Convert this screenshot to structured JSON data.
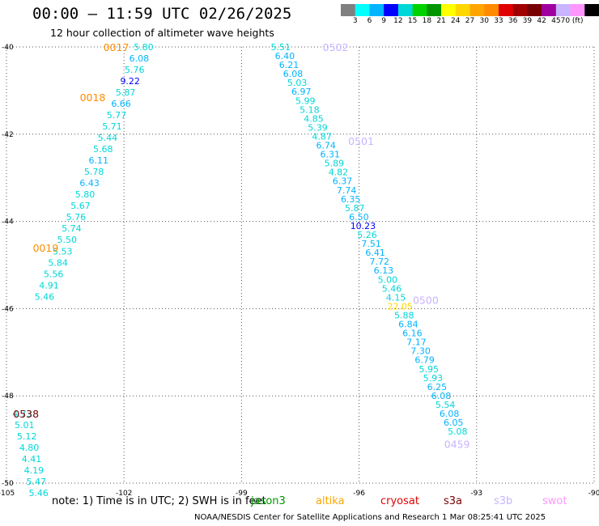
{
  "title": "00:00 – 11:59 UTC 02/26/2025",
  "subtitle": "12 hour collection of altimeter wave heights",
  "colorbar": {
    "colors": [
      "#808080",
      "#00ffff",
      "#00b4ff",
      "#0000ff",
      "#00d7d7",
      "#00d200",
      "#009600",
      "#ffff00",
      "#ffd700",
      "#ffa500",
      "#ff8c00",
      "#e10000",
      "#a00000",
      "#780000",
      "#a000a0",
      "#c8b4ff",
      "#ff96ff",
      "#000000"
    ],
    "labels": [
      "3",
      "6",
      "9",
      "12",
      "15",
      "18",
      "21",
      "24",
      "27",
      "30",
      "33",
      "36",
      "39",
      "42",
      "45",
      "70 (ft)"
    ]
  },
  "chart_data": {
    "type": "scatter",
    "xlim": [
      -105,
      -90
    ],
    "ylim": [
      -50,
      -40
    ],
    "xticks": [
      "-105",
      "-102",
      "-99",
      "-96",
      "-93",
      "-90"
    ],
    "yticks": [
      "-40",
      "-42",
      "-44",
      "-46",
      "-48",
      "-50"
    ],
    "grid": true,
    "series": [
      {
        "x0": -101.5,
        "y0": -40.0,
        "dx": -0.115,
        "dy": -0.26,
        "values": [
          "5.80",
          "6.08",
          "5.76",
          "9.22",
          "5.87",
          "6.66",
          "5.77",
          "5.71",
          "5.44",
          "5.68",
          "6.11",
          "5.78",
          "6.43",
          "5.80",
          "5.67",
          "5.76",
          "5.74",
          "5.50",
          "5.53",
          "5.84",
          "5.56",
          "4.91",
          "5.46"
        ],
        "colors": [
          "#00d7d7",
          "#00b4ff",
          "#00d7d7",
          "#0000ff",
          "#00d7d7",
          "#00b4ff",
          "#00d7d7",
          "#00d7d7",
          "#00d7d7",
          "#00d7d7",
          "#00b4ff",
          "#00d7d7",
          "#00b4ff",
          "#00d7d7",
          "#00d7d7",
          "#00d7d7",
          "#00d7d7",
          "#00d7d7",
          "#00d7d7",
          "#00d7d7",
          "#00d7d7",
          "#00d7d7",
          "#00d7d7"
        ]
      },
      {
        "x0": -98.0,
        "y0": -40.0,
        "dx": 0.105,
        "dy": -0.205,
        "values": [
          "5.51",
          "6.40",
          "6.21",
          "6.08",
          "5.03",
          "6.97",
          "5.99",
          "5.18",
          "4.85",
          "5.39",
          "4.87",
          "6.74",
          "6.31",
          "5.89",
          "4.82",
          "6.37",
          "7.74",
          "6.35",
          "5.87",
          "6.50",
          "10.23",
          "5.26",
          "7.51",
          "6.41",
          "7.72",
          "6.13",
          "5.00",
          "5.46",
          "4.15",
          "22.05",
          "5.88",
          "6.84",
          "6.16",
          "7.17",
          "7.30",
          "6.79",
          "5.95",
          "5.93",
          "6.25",
          "6.08",
          "5.54",
          "6.08",
          "6.05",
          "5.08"
        ],
        "colors": [
          "#00d7d7",
          "#00b4ff",
          "#00b4ff",
          "#00b4ff",
          "#00d7d7",
          "#00b4ff",
          "#00d7d7",
          "#00d7d7",
          "#00d7d7",
          "#00d7d7",
          "#00d7d7",
          "#00b4ff",
          "#00b4ff",
          "#00d7d7",
          "#00d7d7",
          "#00b4ff",
          "#00b4ff",
          "#00b4ff",
          "#00d7d7",
          "#00b4ff",
          "#0000ff",
          "#00d7d7",
          "#00b4ff",
          "#00b4ff",
          "#00b4ff",
          "#00b4ff",
          "#00d7d7",
          "#00d7d7",
          "#00d7d7",
          "#ffd700",
          "#00d7d7",
          "#00b4ff",
          "#00b4ff",
          "#00b4ff",
          "#00b4ff",
          "#00b4ff",
          "#00d7d7",
          "#00d7d7",
          "#00b4ff",
          "#00b4ff",
          "#00d7d7",
          "#00b4ff",
          "#00b4ff",
          "#00d7d7"
        ]
      },
      {
        "x0": -104.6,
        "y0": -48.4,
        "dx": 0.06,
        "dy": -0.26,
        "values": [
          "4.73",
          "5.01",
          "5.12",
          "4.80",
          "4.41",
          "4.19",
          "5.47",
          "5.46"
        ],
        "colors": [
          "#00d7d7",
          "#00d7d7",
          "#00d7d7",
          "#00d7d7",
          "#00d7d7",
          "#00d7d7",
          "#00d7d7",
          "#00d7d7"
        ]
      }
    ],
    "time_labels": [
      {
        "text": "0017",
        "x": -102.2,
        "y": -40.0,
        "color": "#ff8c00"
      },
      {
        "text": "0018",
        "x": -102.8,
        "y": -41.15,
        "color": "#ff8c00"
      },
      {
        "text": "0019",
        "x": -104.0,
        "y": -44.6,
        "color": "#ff8c00"
      },
      {
        "text": "0502",
        "x": -96.6,
        "y": -40.0,
        "color": "#c8b4ff"
      },
      {
        "text": "0501",
        "x": -95.95,
        "y": -42.15,
        "color": "#c8b4ff"
      },
      {
        "text": "0500",
        "x": -94.3,
        "y": -45.8,
        "color": "#c8b4ff"
      },
      {
        "text": "0459",
        "x": -93.5,
        "y": -49.1,
        "color": "#c8b4ff"
      },
      {
        "text": "0538",
        "x": -104.5,
        "y": -48.4,
        "color": "#780000"
      }
    ]
  },
  "note": "note:  1) Time is in UTC; 2) SWH is in feet",
  "legend": [
    {
      "name": "jason3",
      "color": "#009600"
    },
    {
      "name": "altika",
      "color": "#ffa500"
    },
    {
      "name": "cryosat",
      "color": "#e10000"
    },
    {
      "name": "s3a",
      "color": "#780000"
    },
    {
      "name": "s3b",
      "color": "#c8b4ff"
    },
    {
      "name": "swot",
      "color": "#ff96ff"
    }
  ],
  "credit": "NOAA/NESDIS Center for Satellite Applications and Research     1 Mar 08:25:41 UTC 2025"
}
